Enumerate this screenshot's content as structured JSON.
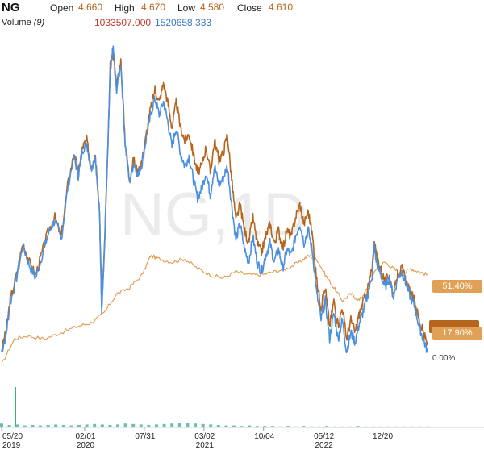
{
  "header": {
    "symbol": "NG",
    "open_label": "Open",
    "open_value": "4.660",
    "high_label": "High",
    "high_value": "4.670",
    "low_label": "Low",
    "low_value": "4.580",
    "close_label": "Close",
    "close_value": "4.610",
    "volume_label": "Volume",
    "volume_period": "(9)",
    "volume_value_1": "1033507.000",
    "volume_value_2": "1520658.333"
  },
  "watermark": "NG,1D",
  "badges": {
    "upper": "51.40%",
    "lower": "17.90%",
    "zero": "0.00%"
  },
  "colors": {
    "price_orange": "#b5651d",
    "price_blue": "#4a90e2",
    "compare_orange": "#e0a055",
    "volume_teal": "#3aa89a",
    "volume_red": "#d04040",
    "volume_green": "#3cb371"
  },
  "chart_data": {
    "type": "line",
    "title": "",
    "xlabel": "",
    "ylabel": "",
    "x_ticks": [
      {
        "top": "05/20",
        "bottom": "2019",
        "t": 0.0
      },
      {
        "top": "02/01",
        "bottom": "2020",
        "t": 0.195
      },
      {
        "top": "07/31",
        "bottom": "",
        "t": 0.335
      },
      {
        "top": "03/02",
        "bottom": "2021",
        "t": 0.475
      },
      {
        "top": "10/04",
        "bottom": "",
        "t": 0.615
      },
      {
        "top": "05/12",
        "bottom": "2022",
        "t": 0.755
      },
      {
        "top": "12/20",
        "bottom": "",
        "t": 0.893
      }
    ],
    "y_range": [
      0,
      1
    ],
    "price_series": [
      [
        0.0,
        0.05
      ],
      [
        0.01,
        0.1
      ],
      [
        0.02,
        0.2
      ],
      [
        0.035,
        0.28
      ],
      [
        0.05,
        0.38
      ],
      [
        0.065,
        0.32
      ],
      [
        0.08,
        0.28
      ],
      [
        0.095,
        0.35
      ],
      [
        0.11,
        0.42
      ],
      [
        0.125,
        0.46
      ],
      [
        0.14,
        0.4
      ],
      [
        0.155,
        0.56
      ],
      [
        0.17,
        0.66
      ],
      [
        0.18,
        0.6
      ],
      [
        0.19,
        0.68
      ],
      [
        0.2,
        0.7
      ],
      [
        0.21,
        0.62
      ],
      [
        0.22,
        0.66
      ],
      [
        0.23,
        0.48
      ],
      [
        0.235,
        0.18
      ],
      [
        0.24,
        0.32
      ],
      [
        0.25,
        0.7
      ],
      [
        0.255,
        0.93
      ],
      [
        0.262,
        0.97
      ],
      [
        0.27,
        0.87
      ],
      [
        0.28,
        0.95
      ],
      [
        0.29,
        0.7
      ],
      [
        0.3,
        0.58
      ],
      [
        0.31,
        0.64
      ],
      [
        0.32,
        0.6
      ],
      [
        0.33,
        0.64
      ],
      [
        0.34,
        0.72
      ],
      [
        0.35,
        0.8
      ],
      [
        0.36,
        0.86
      ],
      [
        0.37,
        0.82
      ],
      [
        0.38,
        0.88
      ],
      [
        0.39,
        0.82
      ],
      [
        0.4,
        0.74
      ],
      [
        0.41,
        0.82
      ],
      [
        0.42,
        0.74
      ],
      [
        0.43,
        0.7
      ],
      [
        0.44,
        0.72
      ],
      [
        0.45,
        0.66
      ],
      [
        0.46,
        0.6
      ],
      [
        0.47,
        0.62
      ],
      [
        0.48,
        0.68
      ],
      [
        0.49,
        0.6
      ],
      [
        0.5,
        0.7
      ],
      [
        0.51,
        0.64
      ],
      [
        0.52,
        0.66
      ],
      [
        0.53,
        0.72
      ],
      [
        0.54,
        0.58
      ],
      [
        0.55,
        0.45
      ],
      [
        0.56,
        0.5
      ],
      [
        0.57,
        0.42
      ],
      [
        0.58,
        0.38
      ],
      [
        0.59,
        0.46
      ],
      [
        0.6,
        0.38
      ],
      [
        0.61,
        0.35
      ],
      [
        0.62,
        0.4
      ],
      [
        0.63,
        0.44
      ],
      [
        0.64,
        0.38
      ],
      [
        0.65,
        0.42
      ],
      [
        0.66,
        0.36
      ],
      [
        0.67,
        0.42
      ],
      [
        0.68,
        0.4
      ],
      [
        0.69,
        0.46
      ],
      [
        0.7,
        0.5
      ],
      [
        0.71,
        0.44
      ],
      [
        0.72,
        0.48
      ],
      [
        0.73,
        0.4
      ],
      [
        0.74,
        0.26
      ],
      [
        0.75,
        0.18
      ],
      [
        0.76,
        0.24
      ],
      [
        0.77,
        0.12
      ],
      [
        0.78,
        0.2
      ],
      [
        0.79,
        0.12
      ],
      [
        0.8,
        0.18
      ],
      [
        0.81,
        0.08
      ],
      [
        0.82,
        0.14
      ],
      [
        0.83,
        0.1
      ],
      [
        0.84,
        0.16
      ],
      [
        0.85,
        0.2
      ],
      [
        0.86,
        0.24
      ],
      [
        0.87,
        0.3
      ],
      [
        0.875,
        0.38
      ],
      [
        0.88,
        0.34
      ],
      [
        0.89,
        0.3
      ],
      [
        0.9,
        0.26
      ],
      [
        0.91,
        0.28
      ],
      [
        0.92,
        0.22
      ],
      [
        0.93,
        0.28
      ],
      [
        0.94,
        0.3
      ],
      [
        0.95,
        0.26
      ],
      [
        0.96,
        0.22
      ],
      [
        0.97,
        0.2
      ],
      [
        0.98,
        0.14
      ],
      [
        0.99,
        0.1
      ],
      [
        1.0,
        0.06
      ]
    ],
    "price_series_2": [
      [
        0.0,
        0.04
      ],
      [
        0.01,
        0.09
      ],
      [
        0.02,
        0.19
      ],
      [
        0.035,
        0.27
      ],
      [
        0.05,
        0.37
      ],
      [
        0.065,
        0.31
      ],
      [
        0.08,
        0.27
      ],
      [
        0.095,
        0.34
      ],
      [
        0.11,
        0.41
      ],
      [
        0.125,
        0.45
      ],
      [
        0.14,
        0.39
      ],
      [
        0.155,
        0.55
      ],
      [
        0.17,
        0.65
      ],
      [
        0.18,
        0.59
      ],
      [
        0.19,
        0.67
      ],
      [
        0.2,
        0.69
      ],
      [
        0.21,
        0.61
      ],
      [
        0.22,
        0.65
      ],
      [
        0.23,
        0.47
      ],
      [
        0.235,
        0.17
      ],
      [
        0.24,
        0.31
      ],
      [
        0.25,
        0.69
      ],
      [
        0.255,
        0.92
      ],
      [
        0.262,
        0.99
      ],
      [
        0.27,
        0.86
      ],
      [
        0.28,
        0.94
      ],
      [
        0.29,
        0.69
      ],
      [
        0.3,
        0.57
      ],
      [
        0.31,
        0.63
      ],
      [
        0.32,
        0.59
      ],
      [
        0.33,
        0.63
      ],
      [
        0.34,
        0.71
      ],
      [
        0.35,
        0.78
      ],
      [
        0.36,
        0.83
      ],
      [
        0.37,
        0.78
      ],
      [
        0.38,
        0.82
      ],
      [
        0.39,
        0.76
      ],
      [
        0.4,
        0.68
      ],
      [
        0.41,
        0.74
      ],
      [
        0.42,
        0.66
      ],
      [
        0.43,
        0.62
      ],
      [
        0.44,
        0.65
      ],
      [
        0.45,
        0.58
      ],
      [
        0.46,
        0.52
      ],
      [
        0.47,
        0.55
      ],
      [
        0.48,
        0.6
      ],
      [
        0.49,
        0.53
      ],
      [
        0.5,
        0.62
      ],
      [
        0.51,
        0.56
      ],
      [
        0.52,
        0.58
      ],
      [
        0.53,
        0.62
      ],
      [
        0.54,
        0.5
      ],
      [
        0.55,
        0.39
      ],
      [
        0.56,
        0.44
      ],
      [
        0.57,
        0.36
      ],
      [
        0.58,
        0.32
      ],
      [
        0.59,
        0.4
      ],
      [
        0.6,
        0.32
      ],
      [
        0.61,
        0.29
      ],
      [
        0.62,
        0.34
      ],
      [
        0.63,
        0.38
      ],
      [
        0.64,
        0.32
      ],
      [
        0.65,
        0.36
      ],
      [
        0.66,
        0.3
      ],
      [
        0.67,
        0.36
      ],
      [
        0.68,
        0.34
      ],
      [
        0.69,
        0.4
      ],
      [
        0.7,
        0.44
      ],
      [
        0.71,
        0.38
      ],
      [
        0.72,
        0.42
      ],
      [
        0.73,
        0.35
      ],
      [
        0.74,
        0.22
      ],
      [
        0.75,
        0.14
      ],
      [
        0.76,
        0.2
      ],
      [
        0.77,
        0.08
      ],
      [
        0.78,
        0.16
      ],
      [
        0.79,
        0.08
      ],
      [
        0.8,
        0.14
      ],
      [
        0.81,
        0.04
      ],
      [
        0.82,
        0.1
      ],
      [
        0.83,
        0.07
      ],
      [
        0.84,
        0.13
      ],
      [
        0.85,
        0.17
      ],
      [
        0.86,
        0.22
      ],
      [
        0.87,
        0.28
      ],
      [
        0.875,
        0.37
      ],
      [
        0.88,
        0.32
      ],
      [
        0.89,
        0.28
      ],
      [
        0.9,
        0.24
      ],
      [
        0.91,
        0.27
      ],
      [
        0.92,
        0.21
      ],
      [
        0.93,
        0.27
      ],
      [
        0.94,
        0.29
      ],
      [
        0.95,
        0.25
      ],
      [
        0.96,
        0.21
      ],
      [
        0.97,
        0.18
      ],
      [
        0.98,
        0.12
      ],
      [
        0.99,
        0.08
      ],
      [
        1.0,
        0.04
      ]
    ],
    "compare_series": [
      [
        0.0,
        0.0
      ],
      [
        0.03,
        0.08
      ],
      [
        0.06,
        0.09
      ],
      [
        0.1,
        0.08
      ],
      [
        0.14,
        0.1
      ],
      [
        0.18,
        0.12
      ],
      [
        0.21,
        0.13
      ],
      [
        0.24,
        0.16
      ],
      [
        0.27,
        0.22
      ],
      [
        0.3,
        0.24
      ],
      [
        0.33,
        0.28
      ],
      [
        0.35,
        0.34
      ],
      [
        0.37,
        0.33
      ],
      [
        0.4,
        0.32
      ],
      [
        0.43,
        0.33
      ],
      [
        0.46,
        0.3
      ],
      [
        0.49,
        0.28
      ],
      [
        0.52,
        0.27
      ],
      [
        0.55,
        0.29
      ],
      [
        0.58,
        0.28
      ],
      [
        0.61,
        0.28
      ],
      [
        0.64,
        0.29
      ],
      [
        0.67,
        0.3
      ],
      [
        0.7,
        0.32
      ],
      [
        0.72,
        0.34
      ],
      [
        0.74,
        0.33
      ],
      [
        0.76,
        0.28
      ],
      [
        0.78,
        0.24
      ],
      [
        0.8,
        0.2
      ],
      [
        0.82,
        0.22
      ],
      [
        0.84,
        0.2
      ],
      [
        0.86,
        0.24
      ],
      [
        0.88,
        0.3
      ],
      [
        0.9,
        0.32
      ],
      [
        0.92,
        0.3
      ],
      [
        0.94,
        0.28
      ],
      [
        0.96,
        0.3
      ],
      [
        0.98,
        0.29
      ],
      [
        1.0,
        0.28
      ]
    ],
    "volume_bars": [
      0.08,
      0.05,
      0.06,
      0.04,
      0.05,
      0.04,
      0.05,
      0.06,
      0.05,
      0.04,
      0.05,
      0.06,
      0.07,
      0.06,
      0.05,
      0.06,
      0.08,
      0.07,
      0.06,
      0.05,
      0.06,
      0.07,
      0.08,
      0.09,
      0.1,
      0.08,
      0.07,
      0.06,
      0.05,
      0.04,
      0.04,
      0.03,
      0.04,
      0.03,
      0.03,
      0.03,
      0.02,
      0.03,
      0.02,
      0.03,
      0.02,
      0.02,
      0.03,
      0.02,
      0.02,
      0.02,
      0.03,
      0.02,
      0.02,
      0.02,
      0.02,
      0.02,
      0.02,
      0.02,
      0.02,
      0.02
    ]
  }
}
